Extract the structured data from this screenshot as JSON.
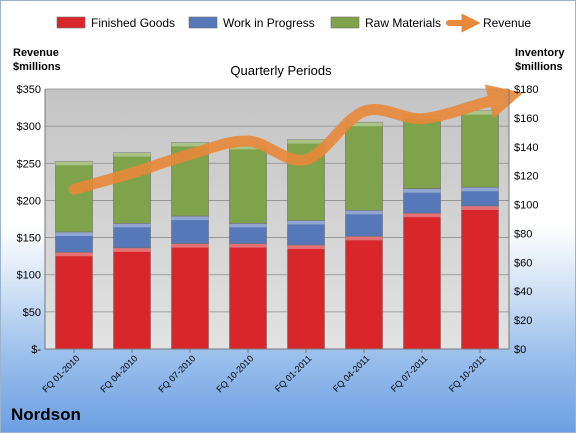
{
  "company": "Nordson",
  "colors": {
    "finished_goods": "#d9262b",
    "work_in_progress": "#5678b8",
    "raw_materials": "#7fa34a",
    "revenue": "#e8883a",
    "plot_background": "#c8c8c8"
  },
  "chart_data": {
    "type": "bar",
    "stacked": true,
    "subtitle": "Quarterly Periods",
    "left_axis_label": [
      "Revenue",
      "$millions"
    ],
    "right_axis_label": [
      "Inventory",
      "$millions"
    ],
    "categories": [
      "FQ 01-2010",
      "FQ 04-2010",
      "FQ 07-2010",
      "FQ 10-2010",
      "FQ 01-2011",
      "FQ 04-2011",
      "FQ 07-2011",
      "FQ 10-2011"
    ],
    "left_axis": {
      "min": 0,
      "max": 350,
      "step": 50,
      "tick_labels": [
        "$-",
        "$50",
        "$100",
        "$150",
        "$200",
        "$250",
        "$300",
        "$350"
      ]
    },
    "right_axis": {
      "min": 0,
      "max": 180,
      "step": 20,
      "tick_labels": [
        "$0",
        "$20",
        "$40",
        "$60",
        "$80",
        "$100",
        "$120",
        "$140",
        "$160",
        "$180"
      ]
    },
    "legend_position": "top",
    "series": [
      {
        "name": "Finished Goods",
        "axis": "right",
        "kind": "bar",
        "values": [
          67,
          70,
          73,
          73,
          72,
          78,
          94,
          99
        ]
      },
      {
        "name": "Work in Progress",
        "axis": "right",
        "kind": "bar",
        "values": [
          14,
          17,
          19,
          14,
          17,
          18,
          17,
          13
        ]
      },
      {
        "name": "Raw Materials",
        "axis": "right",
        "kind": "bar",
        "values": [
          49,
          49,
          51,
          54,
          56,
          61,
          51,
          53
        ]
      },
      {
        "name": "Revenue",
        "axis": "left",
        "kind": "line",
        "values": [
          215,
          237,
          262,
          280,
          255,
          320,
          310,
          330
        ]
      }
    ]
  }
}
